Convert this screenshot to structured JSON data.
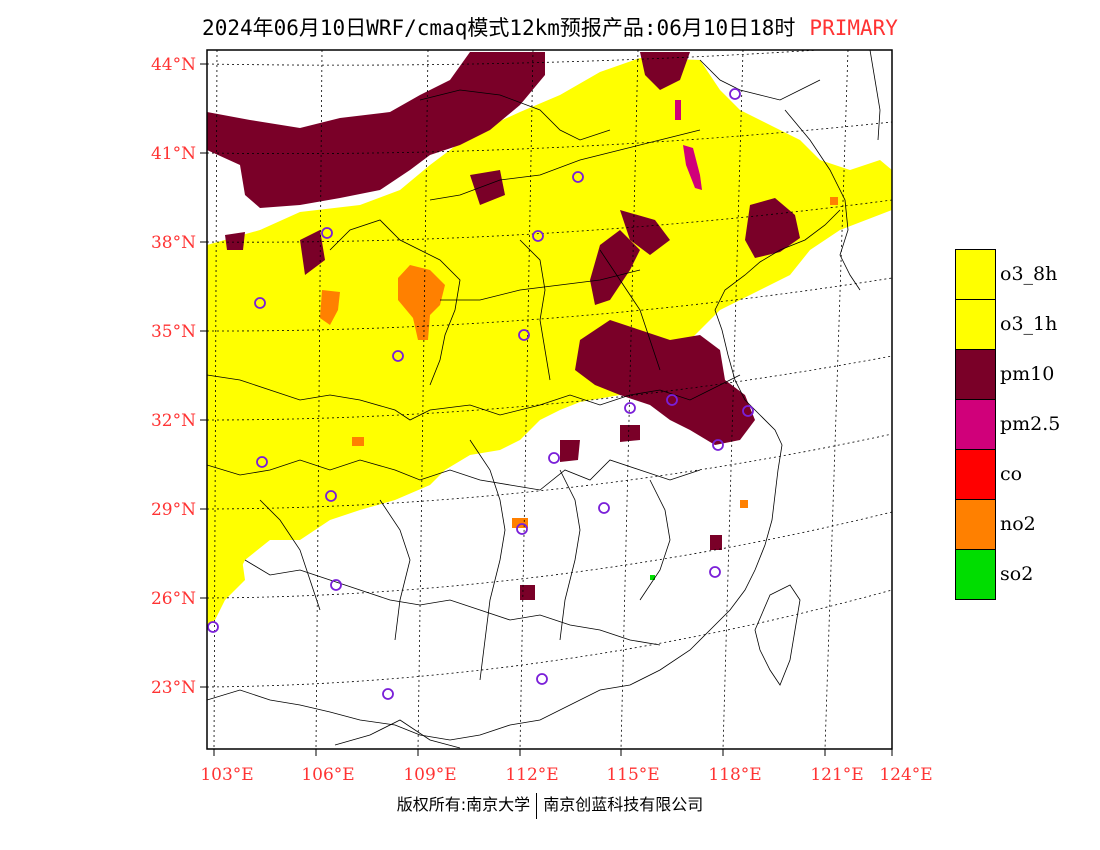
{
  "title": {
    "main": "2024年06月10日WRF/cmaq模式12km预报产品:06月10日18时",
    "tag": "PRIMARY"
  },
  "axes": {
    "lat_labels": [
      "44°N",
      "41°N",
      "38°N",
      "35°N",
      "32°N",
      "29°N",
      "26°N",
      "23°N"
    ],
    "lon_labels": [
      "103°E",
      "106°E",
      "109°E",
      "112°E",
      "115°E",
      "118°E",
      "121°E",
      "124°E"
    ]
  },
  "legend": [
    {
      "label": "o3_8h",
      "color": "#ffff00"
    },
    {
      "label": "o3_1h",
      "color": "#ffff00"
    },
    {
      "label": "pm10",
      "color": "#7a0028"
    },
    {
      "label": "pm2.5",
      "color": "#d0007a"
    },
    {
      "label": "co",
      "color": "#ff0000"
    },
    {
      "label": "no2",
      "color": "#ff8000"
    },
    {
      "label": "so2",
      "color": "#00dd00"
    }
  ],
  "footer": {
    "left": "版权所有:南京大学",
    "right": "南京创蓝科技有限公司"
  },
  "colors": {
    "axis_label": "#ff3333",
    "station_marker": "#7a1fd8"
  }
}
